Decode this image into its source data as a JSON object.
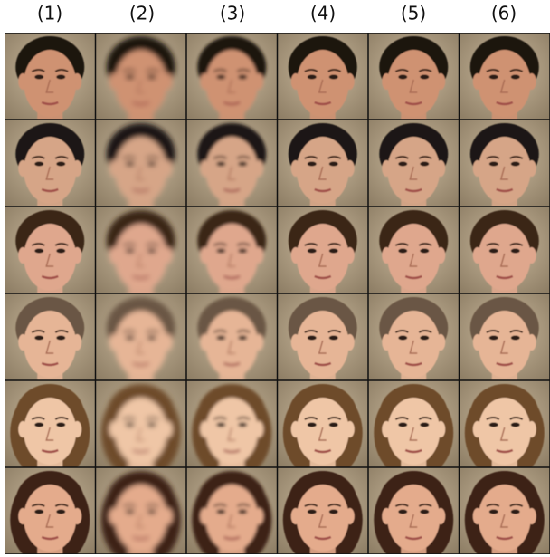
{
  "column_labels": [
    "(1)",
    "(2)",
    "(3)",
    "(4)",
    "(5)",
    "(6)"
  ]
}
